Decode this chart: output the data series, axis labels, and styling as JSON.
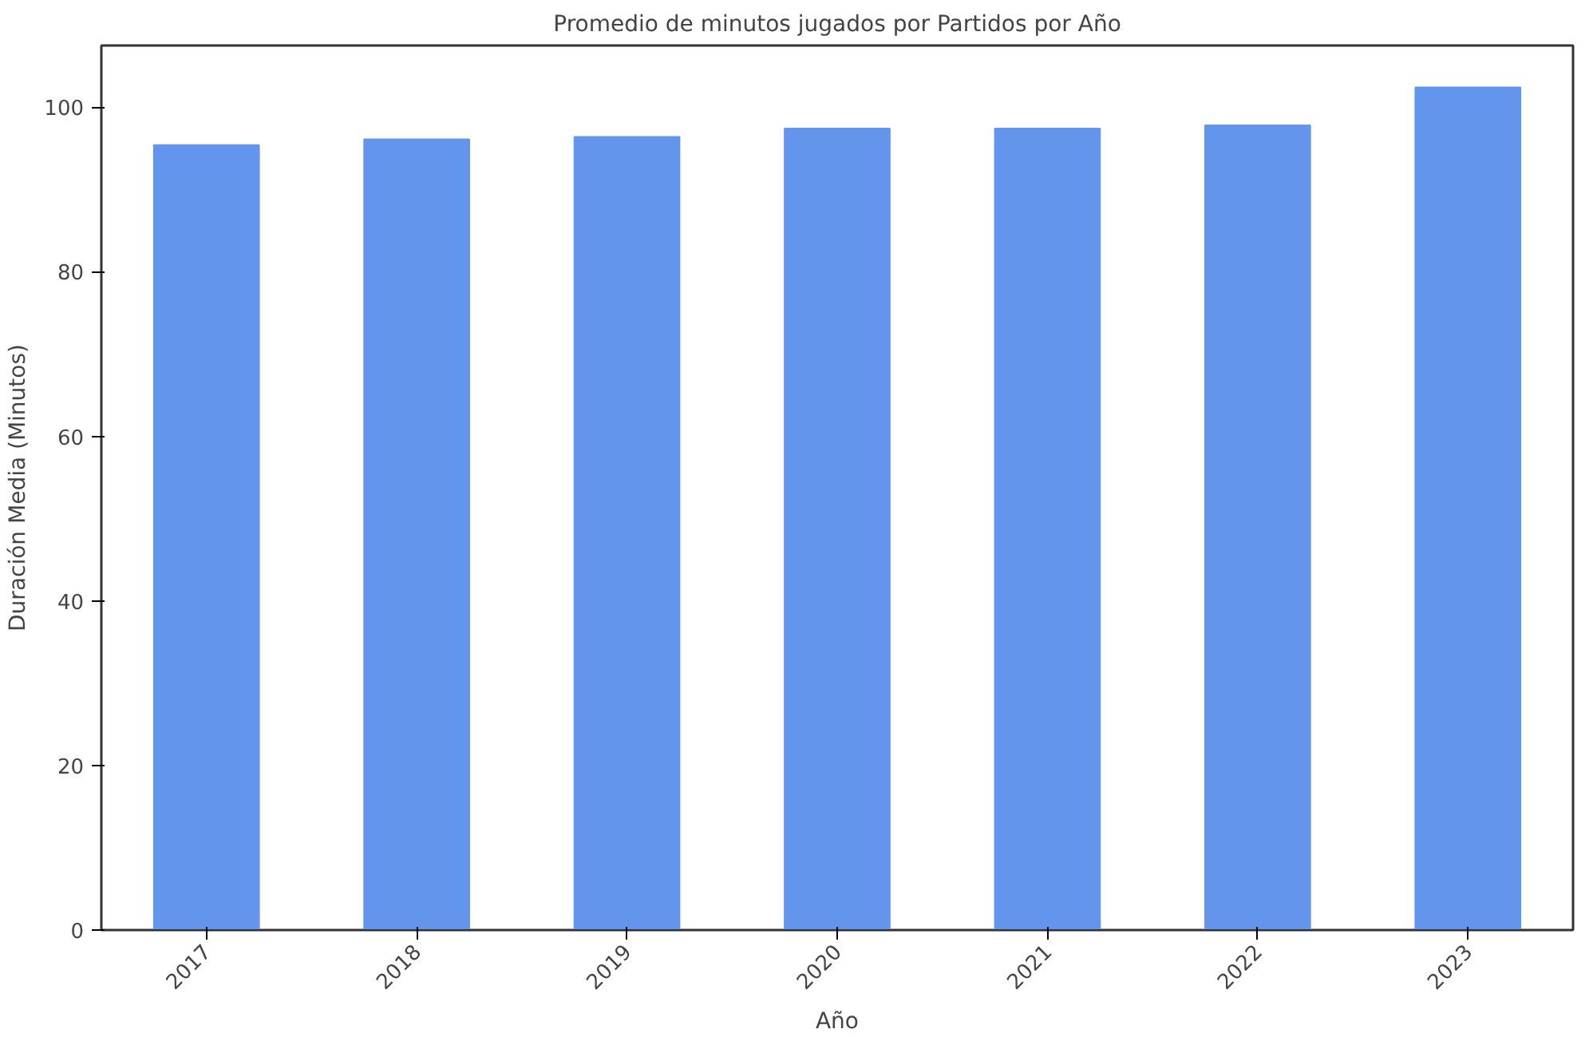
{
  "chart_data": {
    "type": "bar",
    "title": "Promedio de minutos jugados por Partidos por Año",
    "xlabel": "Año",
    "ylabel": "Duración Media (Minutos)",
    "categories": [
      "2017",
      "2018",
      "2019",
      "2020",
      "2021",
      "2022",
      "2023"
    ],
    "values": [
      95.4,
      96.1,
      96.4,
      97.4,
      97.4,
      97.8,
      102.4
    ],
    "color": "#6495ed",
    "ylim": [
      0,
      107.5
    ],
    "yticks": [
      0,
      20,
      40,
      60,
      80,
      100
    ],
    "grid": false
  }
}
